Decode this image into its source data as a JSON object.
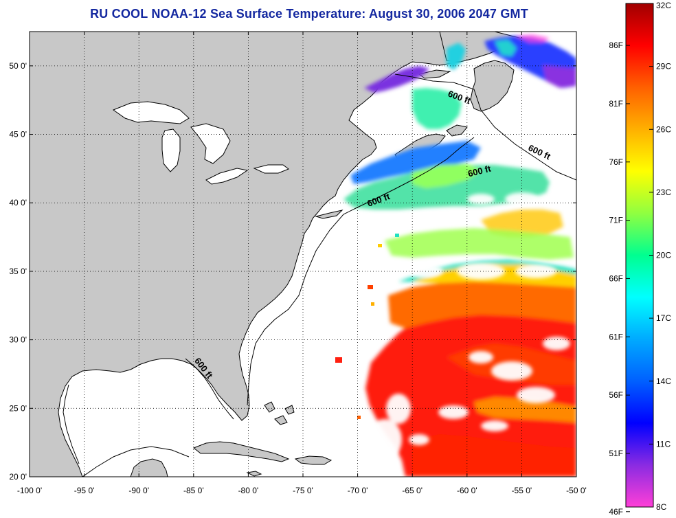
{
  "title": "RU COOL  NOAA-12  Sea Surface Temperature:  August 30, 2006 2047 GMT",
  "map": {
    "lon_range": [
      -100,
      -50
    ],
    "lat_range": [
      20,
      52.5
    ],
    "lon_ticks": [
      {
        "value": -100,
        "label": "-100 0'"
      },
      {
        "value": -95,
        "label": "-95 0'"
      },
      {
        "value": -90,
        "label": "-90 0'"
      },
      {
        "value": -85,
        "label": "-85 0'"
      },
      {
        "value": -80,
        "label": "-80 0'"
      },
      {
        "value": -75,
        "label": "-75 0'"
      },
      {
        "value": -70,
        "label": "-70 0'"
      },
      {
        "value": -65,
        "label": "-65 0'"
      },
      {
        "value": -60,
        "label": "-60 0'"
      },
      {
        "value": -55,
        "label": "-55 0'"
      },
      {
        "value": -50,
        "label": "-50 0'"
      }
    ],
    "lat_ticks": [
      {
        "value": 20,
        "label": "20 0'"
      },
      {
        "value": 25,
        "label": "25 0'"
      },
      {
        "value": 30,
        "label": "30 0'"
      },
      {
        "value": 35,
        "label": "35 0'"
      },
      {
        "value": 40,
        "label": "40 0'"
      },
      {
        "value": 45,
        "label": "45 0'"
      },
      {
        "value": 50,
        "label": "50 0'"
      }
    ],
    "grid": "dotted",
    "land_color": "#c8c8c8",
    "water_color": "#ffffff",
    "isobath_labels": [
      {
        "text": "600 ft",
        "lon": -60.8,
        "lat": 47.5,
        "rotate": 20
      },
      {
        "text": "600 ft",
        "lon": -53.5,
        "lat": 43.5,
        "rotate": 25
      },
      {
        "text": "600 ft",
        "lon": -58.8,
        "lat": 42.1,
        "rotate": -14
      },
      {
        "text": "600 ft",
        "lon": -68.0,
        "lat": 40.0,
        "rotate": -20
      },
      {
        "text": "600 ft",
        "lon": -84.3,
        "lat": 27.8,
        "rotate": 52
      }
    ]
  },
  "colorbar": {
    "min_c": 8,
    "max_c": 32,
    "celsius_labels": [
      {
        "value": 32,
        "label": "32C"
      },
      {
        "value": 29,
        "label": "29C"
      },
      {
        "value": 26,
        "label": "26C"
      },
      {
        "value": 23,
        "label": "23C"
      },
      {
        "value": 20,
        "label": "20C"
      },
      {
        "value": 17,
        "label": "17C"
      },
      {
        "value": 14,
        "label": "14C"
      },
      {
        "value": 11,
        "label": "11C"
      },
      {
        "value": 8,
        "label": "8C"
      }
    ],
    "fahrenheit_labels": [
      {
        "value": 86,
        "label": "86F"
      },
      {
        "value": 81,
        "label": "81F"
      },
      {
        "value": 76,
        "label": "76F"
      },
      {
        "value": 71,
        "label": "71F"
      },
      {
        "value": 66,
        "label": "66F"
      },
      {
        "value": 61,
        "label": "61F"
      },
      {
        "value": 56,
        "label": "56F"
      },
      {
        "value": 51,
        "label": "51F"
      },
      {
        "value": 46,
        "label": "46F"
      }
    ],
    "stops": [
      "#ff3fd7",
      "#8a2be2",
      "#0000ff",
      "#0060ff",
      "#00aaff",
      "#00ffff",
      "#00ff90",
      "#90ff40",
      "#ffff00",
      "#ffb000",
      "#ff6000",
      "#ff0000",
      "#a00000"
    ]
  }
}
